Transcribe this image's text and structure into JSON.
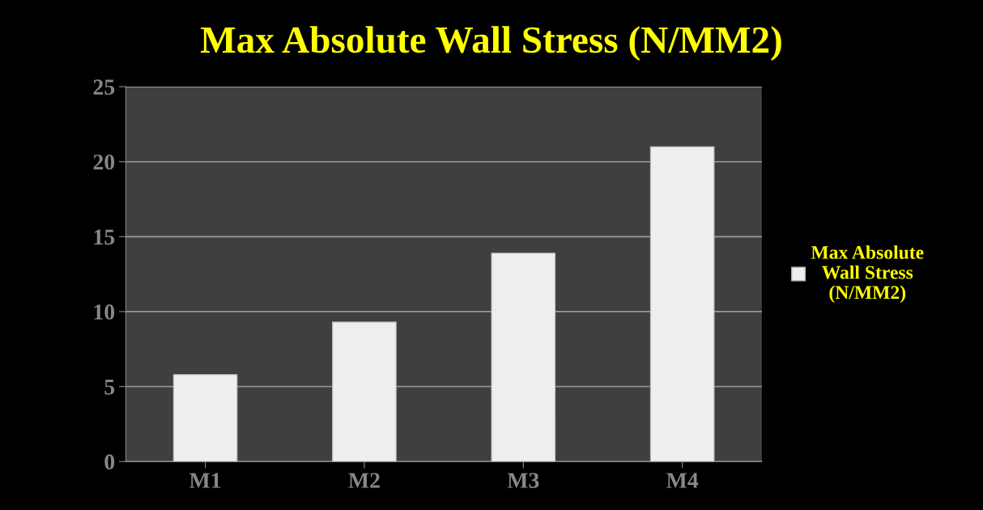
{
  "chart_data": {
    "type": "bar",
    "title": "Max Absolute Wall Stress (N/MM2)",
    "categories": [
      "M1",
      "M2",
      "M3",
      "M4"
    ],
    "series": [
      {
        "name": "Max Absolute\nWall Stress\n(N/MM2)",
        "color": "#eeeeee",
        "values": [
          5.8,
          9.3,
          13.9,
          21.0
        ]
      }
    ],
    "ylim": [
      0,
      25
    ],
    "yticks": [
      0,
      5,
      10,
      15,
      20,
      25
    ],
    "grid": "y",
    "legend": "right"
  }
}
